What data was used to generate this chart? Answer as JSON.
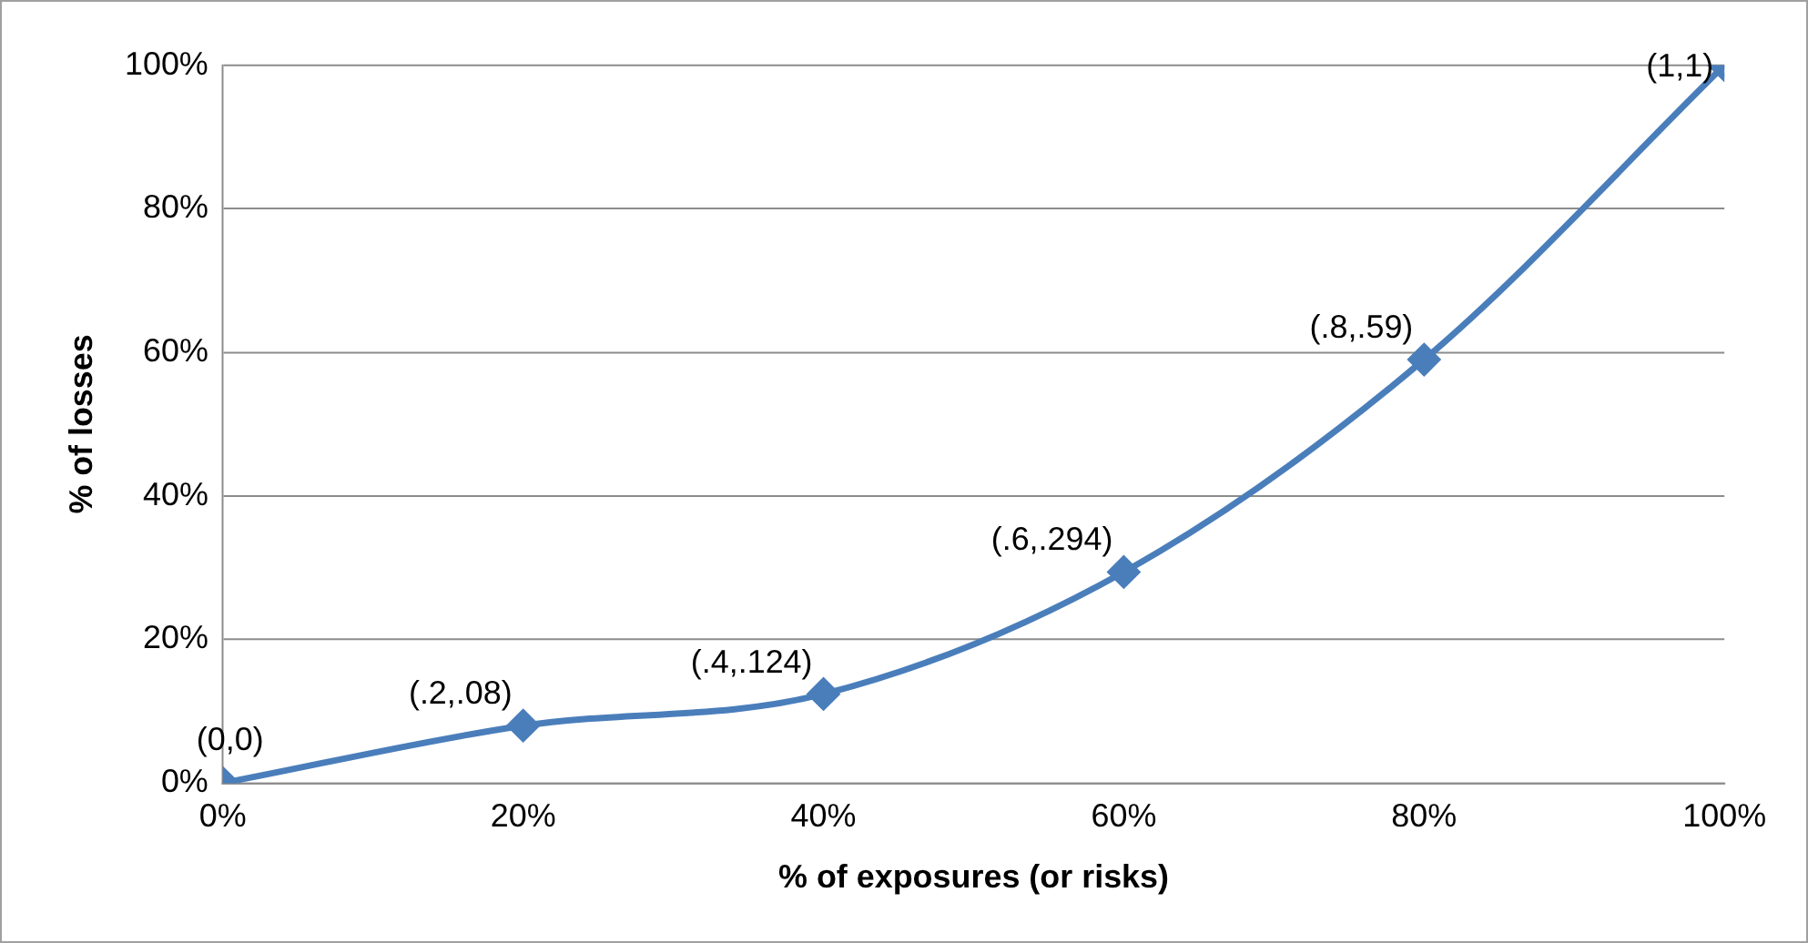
{
  "chart_data": {
    "type": "line",
    "xlabel": "% of exposures (or risks)",
    "ylabel": "% of losses",
    "x": [
      0,
      20,
      40,
      60,
      80,
      100
    ],
    "series": [
      {
        "color": "#4a7ebb",
        "values": [
          0,
          8,
          12.4,
          29.4,
          59,
          100
        ]
      }
    ],
    "xlim": [
      0,
      100
    ],
    "xticks": [
      {
        "value": 0,
        "label": "0%"
      },
      {
        "value": 20,
        "label": "20%"
      },
      {
        "value": 40,
        "label": "40%"
      },
      {
        "value": 60,
        "label": "60%"
      },
      {
        "value": 80,
        "label": "80%"
      },
      {
        "value": 100,
        "label": "100%"
      }
    ],
    "ylim": [
      0,
      100
    ],
    "yticks": [
      {
        "value": 0,
        "label": "0%"
      },
      {
        "value": 20,
        "label": "20%"
      },
      {
        "value": 40,
        "label": "40%"
      },
      {
        "value": 60,
        "label": "60%"
      },
      {
        "value": 80,
        "label": "80%"
      },
      {
        "value": 100,
        "label": "100%"
      }
    ],
    "grid": "y",
    "marker": "diamond",
    "line_style": "solid",
    "annotations": [
      {
        "text": "(0,0)",
        "x": 0,
        "y": 0
      },
      {
        "text": "(.2,.08)",
        "x": 20,
        "y": 8
      },
      {
        "text": "(.4,.124)",
        "x": 40,
        "y": 12.4
      },
      {
        "text": "(.6,.294)",
        "x": 60,
        "y": 29.4
      },
      {
        "text": "(.8,.59)",
        "x": 80,
        "y": 59
      },
      {
        "text": "(1,1)",
        "x": 100,
        "y": 100
      }
    ]
  }
}
